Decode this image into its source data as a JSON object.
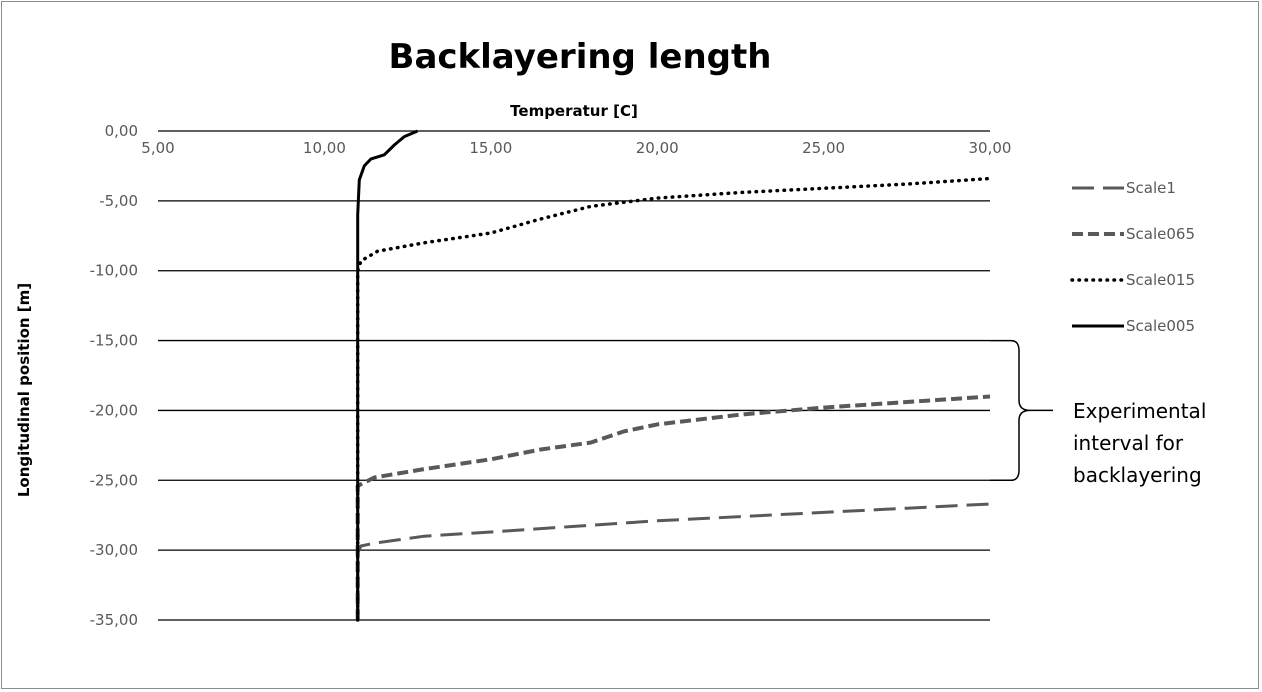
{
  "chart_data": {
    "type": "line",
    "title": "Backlayering length",
    "xlabel": "Temperatur [C]",
    "ylabel": "Longitudinal position [m]",
    "xlim": [
      5,
      30
    ],
    "ylim": [
      -35,
      0
    ],
    "x_ticks": [
      5,
      10,
      15,
      20,
      25,
      30
    ],
    "x_tick_labels": [
      "5,00",
      "10,00",
      "15,00",
      "20,00",
      "25,00",
      "30,00"
    ],
    "y_ticks": [
      0,
      -5,
      -10,
      -15,
      -20,
      -25,
      -30,
      -35
    ],
    "y_tick_labels": [
      "0,00",
      "-5,00",
      "-10,00",
      "-15,00",
      "-20,00",
      "-25,00",
      "-30,00",
      "-35,00"
    ],
    "x_axis_position": "top",
    "grid": "horizontal",
    "legend_position": "right",
    "series": [
      {
        "name": "Scale1",
        "line_style": "long-dash",
        "color": "#595959",
        "points": [
          [
            11.0,
            -35
          ],
          [
            11.0,
            -30.2
          ],
          [
            11.1,
            -29.7
          ],
          [
            11.5,
            -29.5
          ],
          [
            13,
            -29.0
          ],
          [
            15,
            -28.7
          ],
          [
            17.5,
            -28.3
          ],
          [
            20,
            -27.9
          ],
          [
            22.5,
            -27.6
          ],
          [
            25,
            -27.3
          ],
          [
            27.5,
            -27.0
          ],
          [
            30,
            -26.7
          ]
        ]
      },
      {
        "name": "Scale065",
        "line_style": "dash",
        "color": "#595959",
        "points": [
          [
            11.0,
            -35
          ],
          [
            11.0,
            -25.4
          ],
          [
            11.5,
            -24.8
          ],
          [
            13,
            -24.2
          ],
          [
            15,
            -23.5
          ],
          [
            16.5,
            -22.8
          ],
          [
            18,
            -22.3
          ],
          [
            19,
            -21.5
          ],
          [
            20,
            -21.0
          ],
          [
            22.5,
            -20.3
          ],
          [
            25,
            -19.8
          ],
          [
            27.5,
            -19.4
          ],
          [
            30,
            -19.0
          ]
        ]
      },
      {
        "name": "Scale015",
        "line_style": "dot",
        "color": "#000000",
        "points": [
          [
            11.0,
            -35
          ],
          [
            11.0,
            -10
          ],
          [
            11.1,
            -9.3
          ],
          [
            11.6,
            -8.6
          ],
          [
            13,
            -8.0
          ],
          [
            15,
            -7.3
          ],
          [
            16.5,
            -6.3
          ],
          [
            18,
            -5.4
          ],
          [
            20,
            -4.8
          ],
          [
            22.5,
            -4.4
          ],
          [
            25,
            -4.1
          ],
          [
            27.5,
            -3.8
          ],
          [
            30,
            -3.4
          ]
        ]
      },
      {
        "name": "Scale005",
        "line_style": "solid",
        "color": "#000000",
        "points": [
          [
            11.0,
            -35
          ],
          [
            11.0,
            -6
          ],
          [
            11.05,
            -3.5
          ],
          [
            11.2,
            -2.5
          ],
          [
            11.4,
            -2.0
          ],
          [
            11.8,
            -1.7
          ],
          [
            12.1,
            -1.0
          ],
          [
            12.4,
            -0.4
          ],
          [
            12.8,
            0
          ]
        ]
      }
    ],
    "annotation": {
      "lines": [
        "Experimental",
        "interval for",
        "backlayering"
      ],
      "y_range": [
        -25,
        -15
      ]
    }
  }
}
